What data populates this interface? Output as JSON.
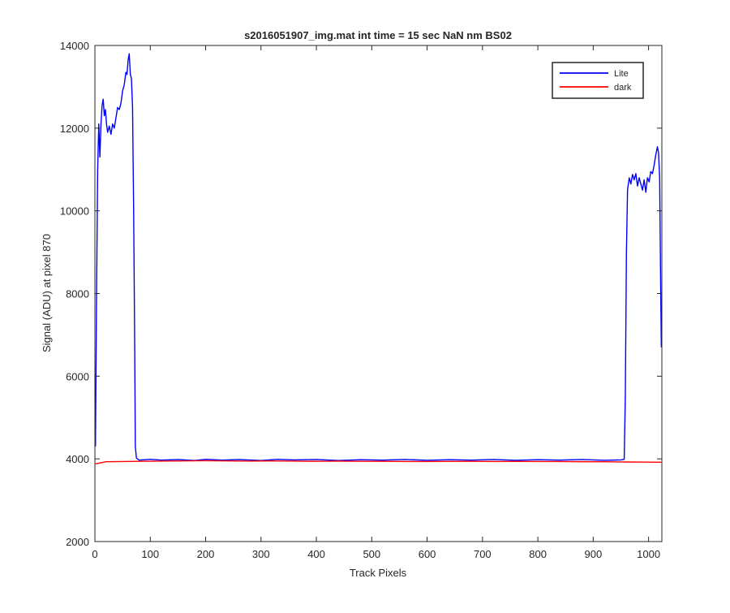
{
  "chart_data": {
    "type": "line",
    "title": "s2016051907_img.mat int time = 15 sec  NaN nm BS02",
    "xlabel": "Track Pixels",
    "ylabel": "Signal (ADU) at pixel 870",
    "xlim": [
      0,
      1024
    ],
    "ylim": [
      2000,
      14000
    ],
    "xticks": [
      0,
      100,
      200,
      300,
      400,
      500,
      600,
      700,
      800,
      900,
      1000
    ],
    "yticks": [
      2000,
      4000,
      6000,
      8000,
      10000,
      12000,
      14000
    ],
    "grid": false,
    "legend": "top-right",
    "series": [
      {
        "name": "Lite",
        "color": "#0000ff",
        "points": [
          [
            1,
            4300
          ],
          [
            3,
            8000
          ],
          [
            5,
            11000
          ],
          [
            7,
            12100
          ],
          [
            9,
            11300
          ],
          [
            11,
            12100
          ],
          [
            13,
            12550
          ],
          [
            15,
            12700
          ],
          [
            17,
            12300
          ],
          [
            19,
            12450
          ],
          [
            21,
            12100
          ],
          [
            23,
            11900
          ],
          [
            26,
            12050
          ],
          [
            29,
            11850
          ],
          [
            32,
            12100
          ],
          [
            35,
            12000
          ],
          [
            38,
            12250
          ],
          [
            41,
            12500
          ],
          [
            44,
            12450
          ],
          [
            47,
            12600
          ],
          [
            50,
            12900
          ],
          [
            53,
            13050
          ],
          [
            56,
            13350
          ],
          [
            58,
            13300
          ],
          [
            60,
            13650
          ],
          [
            62,
            13800
          ],
          [
            64,
            13300
          ],
          [
            66,
            13200
          ],
          [
            68,
            12500
          ],
          [
            70,
            10000
          ],
          [
            72,
            6500
          ],
          [
            73,
            4300
          ],
          [
            75,
            4020
          ],
          [
            80,
            3970
          ],
          [
            100,
            3990
          ],
          [
            120,
            3970
          ],
          [
            150,
            3985
          ],
          [
            180,
            3960
          ],
          [
            200,
            3990
          ],
          [
            230,
            3970
          ],
          [
            260,
            3985
          ],
          [
            300,
            3960
          ],
          [
            330,
            3990
          ],
          [
            360,
            3975
          ],
          [
            400,
            3985
          ],
          [
            440,
            3960
          ],
          [
            480,
            3980
          ],
          [
            520,
            3970
          ],
          [
            560,
            3985
          ],
          [
            600,
            3965
          ],
          [
            640,
            3980
          ],
          [
            680,
            3970
          ],
          [
            720,
            3985
          ],
          [
            760,
            3965
          ],
          [
            800,
            3980
          ],
          [
            840,
            3970
          ],
          [
            880,
            3985
          ],
          [
            920,
            3965
          ],
          [
            950,
            3975
          ],
          [
            956,
            3990
          ],
          [
            958,
            5500
          ],
          [
            960,
            9000
          ],
          [
            962,
            10500
          ],
          [
            965,
            10800
          ],
          [
            968,
            10650
          ],
          [
            971,
            10880
          ],
          [
            974,
            10750
          ],
          [
            977,
            10900
          ],
          [
            980,
            10600
          ],
          [
            983,
            10800
          ],
          [
            986,
            10650
          ],
          [
            989,
            10500
          ],
          [
            992,
            10750
          ],
          [
            995,
            10450
          ],
          [
            998,
            10800
          ],
          [
            1001,
            10700
          ],
          [
            1004,
            10950
          ],
          [
            1007,
            10900
          ],
          [
            1010,
            11100
          ],
          [
            1013,
            11350
          ],
          [
            1016,
            11550
          ],
          [
            1018,
            11400
          ],
          [
            1020,
            10800
          ],
          [
            1022,
            8000
          ],
          [
            1023,
            6700
          ]
        ]
      },
      {
        "name": "dark",
        "color": "#ff0000",
        "points": [
          [
            1,
            3880
          ],
          [
            20,
            3930
          ],
          [
            50,
            3935
          ],
          [
            80,
            3940
          ],
          [
            120,
            3945
          ],
          [
            160,
            3950
          ],
          [
            200,
            3955
          ],
          [
            240,
            3950
          ],
          [
            280,
            3945
          ],
          [
            320,
            3950
          ],
          [
            360,
            3945
          ],
          [
            400,
            3940
          ],
          [
            440,
            3945
          ],
          [
            480,
            3940
          ],
          [
            520,
            3940
          ],
          [
            560,
            3935
          ],
          [
            600,
            3935
          ],
          [
            640,
            3938
          ],
          [
            680,
            3940
          ],
          [
            720,
            3935
          ],
          [
            760,
            3938
          ],
          [
            800,
            3935
          ],
          [
            840,
            3935
          ],
          [
            880,
            3932
          ],
          [
            920,
            3930
          ],
          [
            960,
            3925
          ],
          [
            1000,
            3922
          ],
          [
            1023,
            3918
          ]
        ]
      }
    ]
  }
}
